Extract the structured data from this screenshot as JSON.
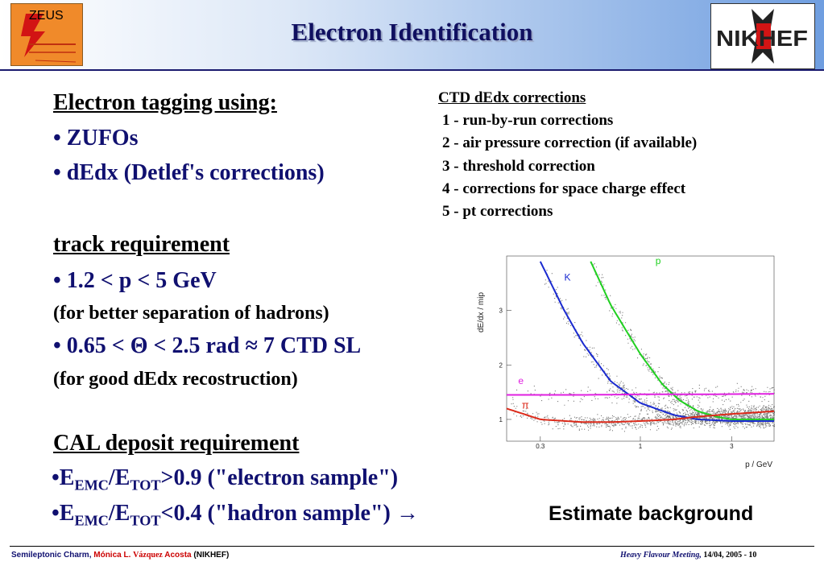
{
  "header": {
    "title": "Electron Identification",
    "left_logo_text": "ZEUS",
    "right_logo_text": "NIKHEF"
  },
  "left": {
    "heading1": "Electron tagging using:",
    "bullet_zufos": "• ZUFOs",
    "bullet_dedx": "• dEdx (Detlef's corrections)",
    "heading2": "track requirement",
    "bullet_p": "• 1.2 < p < 5 GeV",
    "note_p": "(for better separation of hadrons)",
    "bullet_theta": "• 0.65 < Θ < 2.5 rad ≈ 7 CTD SL",
    "note_theta": "(for good dEdx recostruction)",
    "heading3": "CAL deposit requirement",
    "cal1_bullet": "•E",
    "cal1_sub1": "EMC",
    "cal1_slash": "/E",
    "cal1_sub2": "TOT",
    "cal1_rest": ">0.9 (\"electron sample\")",
    "cal2_bullet": "•E",
    "cal2_sub1": "EMC",
    "cal2_slash": "/E",
    "cal2_sub2": "TOT",
    "cal2_rest": "<0.4 (\"hadron sample\") →",
    "estimate": "Estimate background"
  },
  "ctd": {
    "title": "CTD dEdx corrections",
    "items": [
      "1 - run-by-run corrections",
      "2 - air pressure correction (if available)",
      "3 - threshold correction",
      "4 - corrections for space charge effect",
      "5 - pt corrections"
    ]
  },
  "chart_data": {
    "type": "scatter",
    "xlabel": "p / GeV",
    "ylabel": "dE/dx / mip",
    "xscale": "log",
    "xlim": [
      0.2,
      5.0
    ],
    "ylim": [
      0.6,
      4.0
    ],
    "x_ticks": [
      "0.3",
      "1",
      "3"
    ],
    "y_ticks": [
      "1",
      "2",
      "3"
    ],
    "series": [
      {
        "name": "K",
        "color": "#1a2ad0",
        "x": [
          0.3,
          0.4,
          0.5,
          0.7,
          1.0,
          1.5,
          2.0,
          3.0,
          5.0
        ],
        "values": [
          3.9,
          3.0,
          2.4,
          1.7,
          1.3,
          1.08,
          1.0,
          0.97,
          0.97
        ]
      },
      {
        "name": "p",
        "color": "#20d020",
        "x": [
          0.55,
          0.7,
          1.0,
          1.3,
          1.6,
          2.0,
          2.5,
          3.0,
          5.0
        ],
        "values": [
          3.9,
          3.1,
          2.2,
          1.65,
          1.35,
          1.15,
          1.05,
          1.0,
          1.0
        ]
      },
      {
        "name": "e",
        "color": "#e020e0",
        "x": [
          0.2,
          0.5,
          1.0,
          2.0,
          5.0
        ],
        "values": [
          1.45,
          1.45,
          1.46,
          1.46,
          1.47
        ]
      },
      {
        "name": "π",
        "color": "#dd2a1a",
        "x": [
          0.2,
          0.3,
          0.5,
          0.7,
          1.0,
          1.5,
          2.0,
          3.0,
          5.0
        ],
        "values": [
          1.2,
          1.0,
          0.95,
          0.95,
          0.97,
          1.0,
          1.05,
          1.1,
          1.15
        ]
      }
    ]
  },
  "footer": {
    "left_a": "Semileptonic Charm,",
    "left_b": "Mónica L.",
    "left_c": "Vázquez",
    "left_d": "Acosta",
    "left_e": "(NIKHEF)",
    "right_a": "Heavy Flavour Meeting,",
    "right_b": "14/04, 2005 -  10"
  }
}
